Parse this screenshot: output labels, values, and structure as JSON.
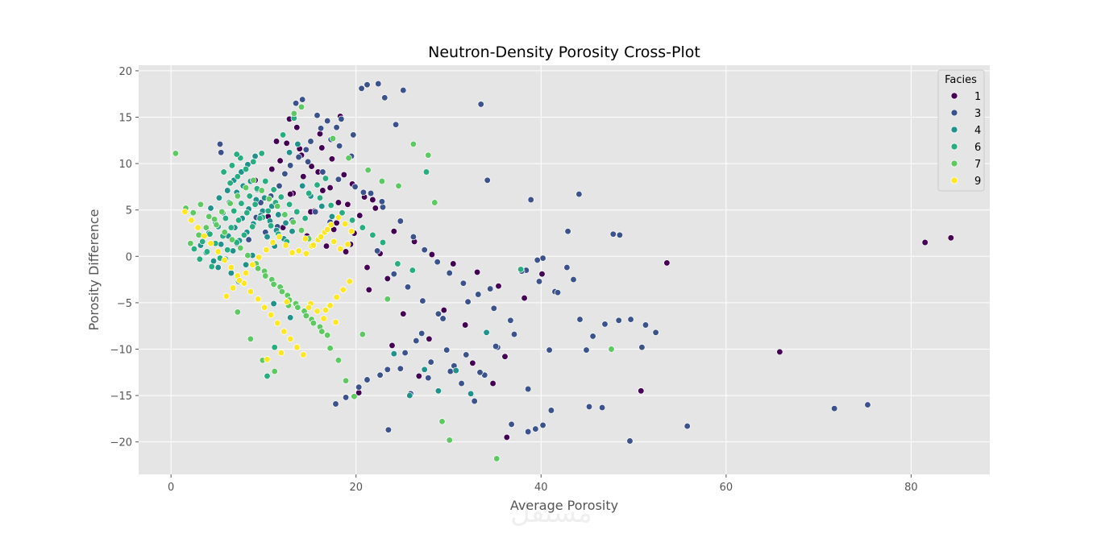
{
  "chart_data": {
    "type": "scatter",
    "title": "Neutron-Density Porosity Cross-Plot",
    "xlabel": "Average Porosity",
    "ylabel": "Porosity Difference",
    "xlim": [
      -3.5,
      88.5
    ],
    "ylim": [
      -23.5,
      20.6
    ],
    "xticks": [
      0,
      20,
      40,
      60,
      80
    ],
    "yticks": [
      -20,
      -15,
      -10,
      -5,
      0,
      5,
      10,
      15,
      20
    ],
    "grid": true,
    "legend": {
      "title": "Facies",
      "position": "top-right"
    },
    "watermark": "مستقل",
    "series": [
      {
        "name": "1",
        "color": "#440154",
        "x": [
          9.1,
          11.4,
          12.8,
          13.9,
          15.2,
          16.1,
          17.4,
          18.3,
          19.6,
          20.9,
          22.1,
          10.5,
          12.1,
          14.7,
          16.8,
          18.9,
          21.2,
          23.4,
          13.2,
          15.5,
          17.9,
          19.8,
          22.6,
          11.8,
          14.3,
          16.4,
          18.1,
          20.4,
          24.1,
          26.3,
          28.2,
          30.5,
          33.1,
          35.4,
          38.2,
          40.1,
          29.5,
          31.8,
          36.1,
          26.8,
          23.9,
          20.3,
          21.4,
          25.1,
          27.9,
          32.6,
          34.8,
          36.3,
          50.8,
          81.5,
          84.3,
          53.6,
          65.8,
          12.5,
          14.1,
          15.9,
          17.2,
          19.1,
          13.6,
          16.3,
          18.7,
          21.8,
          10.9,
          12.9,
          15.1,
          17.6,
          19.4
        ],
        "y": [
          8.2,
          12.4,
          14.8,
          11.6,
          9.7,
          13.2,
          10.5,
          15.1,
          7.8,
          6.4,
          5.2,
          4.3,
          3.1,
          2.2,
          1.1,
          0.5,
          -1.2,
          -2.4,
          6.8,
          4.9,
          3.6,
          2.5,
          0.3,
          10.3,
          8.6,
          7.1,
          5.8,
          4.4,
          2.7,
          1.6,
          0.2,
          -0.8,
          -1.7,
          -3.2,
          -4.5,
          -1.9,
          -5.8,
          -7.4,
          -10.8,
          -12.9,
          -9.6,
          -14.7,
          -3.6,
          -6.2,
          -8.9,
          -11.5,
          -13.7,
          -19.5,
          -14.5,
          1.5,
          2.0,
          -0.7,
          -10.3,
          12.2,
          10.9,
          9.1,
          7.4,
          5.6,
          13.9,
          11.7,
          8.8,
          6.1,
          9.4,
          6.7,
          4.8,
          2.9,
          1.3
        ]
      },
      {
        "name": "3",
        "color": "#3b528b",
        "x": [
          5.3,
          5.4,
          13.5,
          14.2,
          15.8,
          16.9,
          17.9,
          18.4,
          19.7,
          20.6,
          21.2,
          22.4,
          23.1,
          24.3,
          25.1,
          18.2,
          19.5,
          17.3,
          16.2,
          15.1,
          14.6,
          13.8,
          12.9,
          12.3,
          11.7,
          10.8,
          9.7,
          9.2,
          20.8,
          22.9,
          24.8,
          26.2,
          27.4,
          28.8,
          30.1,
          31.6,
          33.2,
          34.9,
          36.7,
          38.4,
          39.8,
          41.5,
          42.8,
          44.2,
          45.6,
          46.9,
          48.4,
          49.7,
          51.3,
          52.4,
          55.8,
          71.7,
          75.3,
          33.5,
          34.2,
          38.9,
          40.2,
          41.8,
          43.5,
          45.2,
          46.6,
          30.2,
          31.4,
          32.8,
          35.3,
          37.1,
          28.9,
          27.2,
          25.6,
          24.1,
          22.3,
          29.8,
          33.9,
          36.8,
          39.4,
          41.1,
          23.5,
          25.9,
          27.8,
          30.6,
          31.9,
          33.4,
          35.1,
          38.6,
          40.2,
          44.9,
          49.6,
          50.9,
          23.4,
          26.5,
          38.6,
          40.9,
          21.2,
          24.8,
          28.1,
          17.8,
          18.9,
          20.3,
          22.6,
          25.3,
          27.1,
          29.4,
          32.1,
          34.5,
          37.9,
          39.6,
          47.8,
          48.5,
          44.1,
          42.9,
          14.8,
          16.4,
          18.1,
          19.9,
          21.6,
          22.8,
          15.6,
          17.2,
          13.1,
          11.5,
          10.2,
          8.4,
          7.1
        ],
        "y": [
          12.1,
          11.2,
          16.5,
          16.9,
          15.2,
          14.6,
          13.9,
          14.8,
          13.1,
          18.1,
          18.5,
          18.6,
          17.1,
          14.2,
          17.9,
          11.9,
          10.8,
          12.6,
          13.8,
          12.4,
          11.5,
          10.7,
          9.8,
          8.9,
          7.6,
          6.5,
          5.8,
          4.2,
          6.9,
          5.3,
          3.8,
          2.1,
          0.7,
          -0.6,
          -1.8,
          -2.9,
          -4.1,
          -5.6,
          -6.9,
          -1.5,
          -2.7,
          -3.8,
          -1.2,
          -6.8,
          -8.6,
          -7.3,
          -6.9,
          -6.8,
          -7.4,
          -8.2,
          -18.3,
          -16.4,
          -16.0,
          16.4,
          8.2,
          6.1,
          -0.2,
          -3.9,
          -2.5,
          -16.2,
          -16.3,
          -12.4,
          -13.7,
          -15.6,
          -9.8,
          -8.4,
          -6.2,
          -4.8,
          -3.3,
          -1.9,
          0.6,
          -10.1,
          -12.8,
          -18.1,
          -18.6,
          -16.6,
          -18.7,
          -14.8,
          -13.1,
          -11.8,
          -10.6,
          -12.5,
          -9.7,
          -18.9,
          -18.2,
          -10.1,
          -19.9,
          -9.8,
          -12.2,
          -9.1,
          -14.3,
          -10.1,
          -13.3,
          -12.1,
          -11.4,
          -15.9,
          -15.2,
          -14.1,
          -12.8,
          -10.4,
          -8.3,
          -6.7,
          -4.9,
          -3.5,
          -1.6,
          -0.4,
          2.4,
          2.3,
          6.7,
          2.7,
          10.2,
          9.1,
          8.3,
          7.5,
          6.8,
          5.9,
          4.8,
          3.7,
          3.9,
          3.2,
          2.6,
          1.8,
          1.4
        ]
      },
      {
        "name": "4",
        "color": "#21918c",
        "x": [
          3.2,
          4.1,
          4.8,
          5.6,
          6.3,
          7.1,
          7.8,
          8.6,
          9.3,
          10.1,
          10.9,
          11.6,
          12.4,
          13.1,
          3.8,
          4.6,
          5.4,
          6.2,
          6.9,
          7.7,
          8.4,
          9.2,
          9.9,
          10.7,
          11.4,
          12.2,
          5.1,
          5.9,
          6.7,
          7.4,
          8.2,
          8.9,
          9.7,
          10.4,
          11.2,
          4.3,
          5.2,
          6.1,
          6.8,
          7.6,
          8.3,
          9.1,
          14.2,
          15.1,
          16.3,
          17.4,
          12.8,
          13.7,
          24.1,
          25.8,
          27.4,
          28.9,
          30.8,
          32.4,
          34.1,
          11.1,
          12.9,
          6.5,
          7.3,
          8.1,
          8.8
        ],
        "y": [
          1.2,
          2.5,
          3.6,
          4.7,
          5.8,
          6.9,
          7.6,
          8.1,
          7.2,
          6.3,
          5.4,
          4.5,
          3.6,
          2.7,
          0.4,
          -0.5,
          1.3,
          2.2,
          3.1,
          4.1,
          5.1,
          6.1,
          4.9,
          3.8,
          2.8,
          1.9,
          -1.2,
          -0.3,
          0.6,
          1.7,
          2.6,
          3.5,
          4.4,
          2.1,
          1.1,
          5.2,
          6.3,
          7.1,
          8.2,
          9.1,
          9.9,
          10.8,
          7.6,
          6.5,
          5.4,
          4.3,
          11.2,
          12.1,
          -10.5,
          -15.0,
          -12.2,
          -14.5,
          -12.3,
          -14.8,
          -8.2,
          -5.1,
          -6.6,
          -1.8,
          -2.7,
          -0.9,
          0.1
        ]
      },
      {
        "name": "6",
        "color": "#27ad81",
        "x": [
          2.5,
          3.4,
          4.2,
          5.1,
          5.9,
          6.8,
          7.6,
          8.5,
          9.3,
          10.2,
          11.1,
          11.9,
          12.8,
          13.6,
          14.5,
          3.1,
          3.9,
          4.8,
          5.6,
          6.5,
          7.3,
          8.2,
          9.1,
          9.9,
          10.8,
          11.6,
          12.5,
          4.4,
          5.3,
          6.1,
          7.1,
          7.9,
          8.8,
          9.6,
          10.5,
          11.3,
          6.4,
          7.2,
          8.1,
          8.9,
          9.8,
          5.7,
          6.6,
          7.5,
          16.1,
          17.3,
          18.5,
          19.6,
          20.7,
          21.8,
          22.9,
          14.9,
          15.8,
          16.7,
          12.1,
          13.3,
          11.2,
          10.4,
          7.1,
          27.6,
          26.1,
          24.5,
          37.8
        ],
        "y": [
          0.8,
          1.6,
          2.4,
          3.2,
          4.1,
          4.9,
          5.7,
          6.5,
          7.3,
          8.1,
          7.2,
          6.4,
          5.6,
          4.8,
          4.1,
          -0.3,
          0.5,
          1.4,
          2.2,
          3.1,
          3.9,
          4.7,
          5.6,
          4.2,
          3.3,
          2.4,
          1.6,
          -1.1,
          -0.2,
          0.7,
          1.5,
          2.3,
          3.2,
          4.1,
          4.9,
          5.8,
          7.9,
          8.6,
          9.4,
          10.2,
          11.1,
          9.1,
          9.8,
          10.6,
          6.3,
          5.5,
          4.7,
          3.9,
          3.1,
          2.3,
          1.5,
          6.8,
          7.7,
          8.4,
          13.1,
          14.9,
          -9.8,
          -12.9,
          11.0,
          9.1,
          -1.5,
          -0.8,
          -1.4
        ]
      },
      {
        "name": "7",
        "color": "#5ec962",
        "x": [
          0.5,
          1.6,
          2.4,
          3.2,
          4.1,
          4.9,
          5.8,
          6.6,
          7.5,
          8.3,
          9.2,
          10.1,
          10.9,
          11.8,
          12.6,
          13.5,
          14.4,
          15.2,
          16.1,
          16.9,
          2.1,
          3.0,
          3.8,
          4.7,
          5.5,
          6.4,
          7.2,
          8.1,
          8.9,
          9.8,
          10.6,
          11.5,
          12.3,
          13.2,
          14.1,
          14.9,
          9.4,
          10.2,
          11.1,
          12.0,
          12.8,
          13.7,
          14.6,
          15.4,
          16.3,
          17.2,
          18.1,
          18.9,
          19.8,
          20.7,
          23.4,
          24.6,
          26.2,
          27.8,
          28.5,
          29.3,
          30.1,
          14.1,
          13.3,
          17.5,
          19.2,
          21.3,
          22.8,
          35.2,
          47.6,
          8.6,
          7.2,
          9.9,
          11.2,
          12.7
        ],
        "y": [
          11.1,
          5.2,
          4.7,
          5.6,
          4.3,
          3.4,
          2.6,
          1.8,
          0.9,
          0.1,
          -0.8,
          -1.6,
          -2.5,
          -3.3,
          -4.2,
          -5.1,
          -5.9,
          -6.8,
          -7.6,
          -8.5,
          1.4,
          2.3,
          3.1,
          4.0,
          4.8,
          5.7,
          6.5,
          7.4,
          8.2,
          7.1,
          6.2,
          5.4,
          4.5,
          3.7,
          2.8,
          1.9,
          -1.3,
          -2.1,
          -3.0,
          -3.8,
          -4.7,
          -5.5,
          -6.4,
          -7.2,
          -8.1,
          -9.9,
          -11.2,
          -13.4,
          -15.1,
          -8.4,
          -4.6,
          7.6,
          12.1,
          10.9,
          5.8,
          -17.8,
          -19.8,
          16.1,
          15.4,
          12.7,
          10.6,
          9.3,
          8.1,
          -21.8,
          -10.0,
          -8.9,
          -6.0,
          -11.2,
          -12.4,
          -5.3
        ],
        "labels": []
      },
      {
        "name": "9",
        "color": "#fde725",
        "x": [
          1.5,
          2.2,
          2.9,
          3.6,
          4.3,
          5.1,
          5.8,
          6.5,
          7.2,
          7.9,
          8.6,
          9.4,
          10.1,
          10.8,
          11.5,
          12.2,
          12.9,
          13.6,
          14.3,
          15.1,
          15.8,
          16.5,
          17.2,
          17.9,
          18.6,
          19.3,
          15.2,
          15.9,
          16.6,
          17.3,
          18.1,
          18.8,
          19.5,
          14.6,
          15.4,
          16.2,
          16.9,
          17.6,
          18.3,
          19.1,
          13.8,
          14.5,
          13.1,
          12.4,
          11.7,
          11.0,
          10.3,
          9.5,
          8.8,
          8.1,
          7.4,
          6.7,
          6.0,
          10.4,
          11.9,
          12.5,
          14.9,
          16.7,
          17.8
        ],
        "y": [
          4.8,
          3.9,
          3.1,
          2.2,
          1.4,
          0.5,
          -0.4,
          -1.2,
          -2.1,
          -2.9,
          -3.8,
          -4.6,
          -5.5,
          -6.3,
          -7.2,
          -8.1,
          -8.9,
          -9.8,
          -10.6,
          -5.1,
          -5.9,
          -6.7,
          -5.3,
          -4.4,
          -3.6,
          -2.7,
          1.1,
          1.8,
          2.6,
          3.4,
          4.2,
          3.5,
          2.7,
          0.3,
          1.2,
          2.1,
          2.9,
          1.6,
          0.8,
          1.3,
          0.6,
          1.9,
          0.4,
          1.2,
          2.1,
          1.5,
          0.7,
          -0.1,
          -0.9,
          -1.8,
          -2.6,
          -3.4,
          -4.3,
          -11.1,
          -10.4,
          -4.9,
          -5.5,
          -5.8,
          -7.1
        ]
      }
    ]
  }
}
